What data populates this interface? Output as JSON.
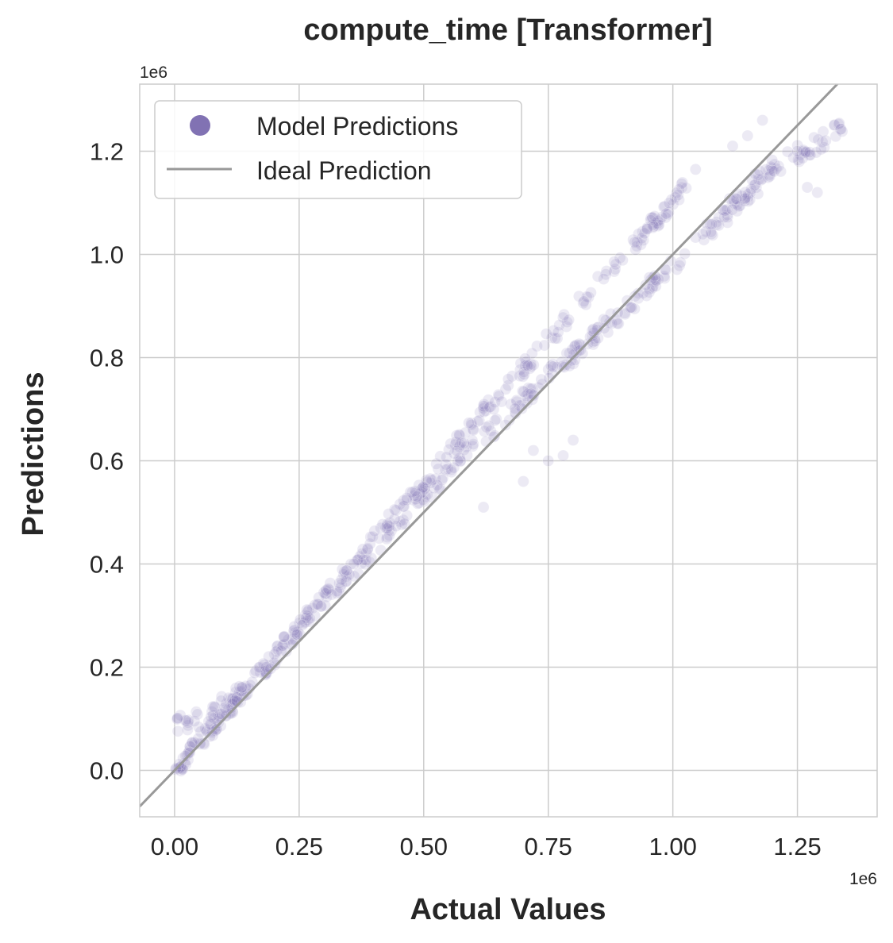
{
  "chart_data": {
    "type": "scatter",
    "title": "compute_time [Transformer]",
    "xlabel": "Actual Values",
    "ylabel": "Predictions",
    "x_offset_label": "1e6",
    "y_offset_label": "1e6",
    "xlim": [
      -0.07,
      1.41
    ],
    "ylim": [
      -0.09,
      1.33
    ],
    "x_ticks": [
      0.0,
      0.25,
      0.5,
      0.75,
      1.0,
      1.25
    ],
    "x_tick_labels": [
      "0.00",
      "0.25",
      "0.50",
      "0.75",
      "1.00",
      "1.25"
    ],
    "y_ticks": [
      0.0,
      0.2,
      0.4,
      0.6,
      0.8,
      1.0,
      1.2
    ],
    "y_tick_labels": [
      "0.0",
      "0.2",
      "0.4",
      "0.6",
      "0.8",
      "1.0",
      "1.2"
    ],
    "grid": true,
    "legend_position": "top-left",
    "series": [
      {
        "name": "Model Predictions",
        "kind": "scatter",
        "color": "#8172b3",
        "point_alpha": 0.15,
        "bands": [
          {
            "x": [
              0.0,
              0.1,
              0.3,
              0.5,
              0.7,
              0.9,
              1.0,
              1.1,
              1.2
            ],
            "y": [
              0.0,
              0.11,
              0.33,
              0.53,
              0.72,
              0.89,
              0.98,
              1.07,
              1.16
            ]
          },
          {
            "x": [
              0.0,
              0.2,
              0.4,
              0.6,
              0.8,
              0.9,
              1.0,
              1.05
            ],
            "y": [
              0.0,
              0.22,
              0.45,
              0.67,
              0.89,
              1.0,
              1.1,
              1.16
            ]
          },
          {
            "x": [
              0.0,
              0.05,
              0.1,
              0.15
            ],
            "y": [
              0.09,
              0.1,
              0.13,
              0.16
            ]
          },
          {
            "x": [
              1.1,
              1.2,
              1.3,
              1.34
            ],
            "y": [
              1.08,
              1.17,
              1.22,
              1.25
            ]
          }
        ],
        "outliers": [
          {
            "x": 0.62,
            "y": 0.51
          },
          {
            "x": 0.7,
            "y": 0.56
          },
          {
            "x": 0.75,
            "y": 0.6
          },
          {
            "x": 0.78,
            "y": 0.61
          },
          {
            "x": 0.8,
            "y": 0.64
          },
          {
            "x": 0.72,
            "y": 0.62
          },
          {
            "x": 1.18,
            "y": 1.26
          },
          {
            "x": 1.15,
            "y": 1.23
          },
          {
            "x": 1.12,
            "y": 1.21
          },
          {
            "x": 1.29,
            "y": 1.12
          },
          {
            "x": 1.27,
            "y": 1.13
          },
          {
            "x": 1.25,
            "y": 1.2
          }
        ]
      },
      {
        "name": "Ideal Prediction",
        "kind": "line",
        "color": "#999999",
        "x": [
          -0.07,
          1.41
        ],
        "y": [
          -0.07,
          1.41
        ]
      }
    ]
  }
}
